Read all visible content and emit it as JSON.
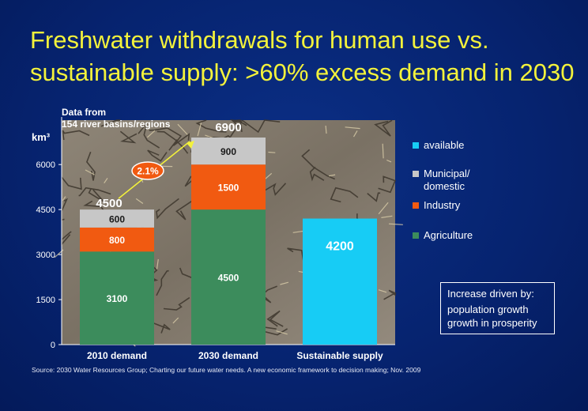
{
  "title": "Freshwater withdrawals for human use vs. sustainable supply: >60% excess demand in 2030",
  "chart_data": {
    "type": "bar",
    "stacked": true,
    "categories": [
      "2010 demand",
      "2030 demand",
      "Sustainable supply"
    ],
    "series": [
      {
        "name": "Agriculture",
        "values": [
          3100,
          4500,
          null
        ],
        "color": "#3c8c5c"
      },
      {
        "name": "Industry",
        "values": [
          800,
          1500,
          null
        ],
        "color": "#f15a11"
      },
      {
        "name": "Municipal/\ndomestic",
        "values": [
          600,
          900,
          null
        ],
        "color": "#c7c7c7"
      },
      {
        "name": "available",
        "values": [
          null,
          null,
          4200
        ],
        "color": "#17ccf5"
      }
    ],
    "totals": [
      4500,
      6900,
      null
    ],
    "ylabel": "km³",
    "ylim": [
      0,
      6900
    ],
    "yticks": [
      0,
      1500,
      3000,
      4500,
      6000
    ],
    "annotation_top": "Data from\n154 river basins/regions",
    "growth_label": "2.1%",
    "legend_position": "right",
    "background": "cracked dry soil photograph"
  },
  "legend_items": [
    {
      "label": "available",
      "color": "#17ccf5"
    },
    {
      "label": "Municipal/\ndomestic",
      "color": "#c7c7c7"
    },
    {
      "label": "Industry",
      "color": "#f15a11"
    },
    {
      "label": "Agriculture",
      "color": "#3c8c5c"
    }
  ],
  "note": {
    "heading": "Increase driven by:",
    "line1": "population growth",
    "line2": "growth in prosperity"
  },
  "source": "Source: 2030 Water Resources Group; Charting our future water needs. A new economic framework to decision making; Nov. 2009"
}
